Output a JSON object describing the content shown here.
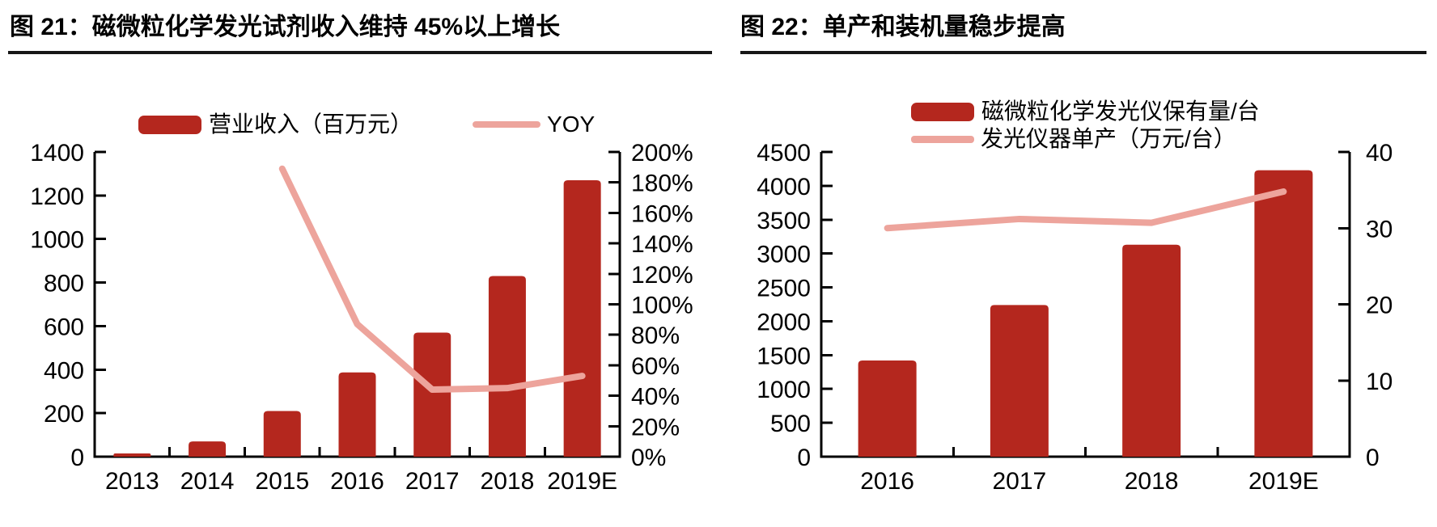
{
  "colors": {
    "bar": "#b4271e",
    "line": "#eda49c",
    "axis": "#000000",
    "text": "#000000",
    "divider": "#161616",
    "background": "#ffffff"
  },
  "chart_data": [
    {
      "type": "bar",
      "subtype": "combo-bar-line-dual-axis",
      "title": "图 21：磁微粒化学发光试剂收入维持 45%以上增长",
      "categories": [
        "2013",
        "2014",
        "2015",
        "2016",
        "2017",
        "2018",
        "2019E"
      ],
      "series": [
        {
          "name": "营业收入（百万元）",
          "type": "bar",
          "axis": "left",
          "values": [
            15,
            70,
            210,
            387,
            570,
            830,
            1270
          ]
        },
        {
          "name": "YOY",
          "type": "line",
          "axis": "right",
          "values": [
            null,
            null,
            189,
            87,
            44,
            45,
            53
          ]
        }
      ],
      "left_axis": {
        "min": 0,
        "max": 1400,
        "step": 200,
        "suffix": ""
      },
      "right_axis": {
        "min": 0,
        "max": 200,
        "step": 20,
        "suffix": "%"
      },
      "grid": false,
      "legend_position": "top"
    },
    {
      "type": "bar",
      "subtype": "combo-bar-line-dual-axis",
      "title": "图 22：单产和装机量稳步提高",
      "categories": [
        "2016",
        "2017",
        "2018",
        "2019E"
      ],
      "series": [
        {
          "name": "磁微粒化学发光仪保有量/台",
          "type": "bar",
          "axis": "left",
          "values": [
            1420,
            2240,
            3130,
            4230
          ]
        },
        {
          "name": "发光仪器单产（万元/台）",
          "type": "line",
          "axis": "right",
          "values": [
            30,
            31.2,
            30.7,
            34.8
          ]
        }
      ],
      "left_axis": {
        "min": 0,
        "max": 4500,
        "step": 500,
        "suffix": ""
      },
      "right_axis": {
        "min": 0,
        "max": 40,
        "step": 10,
        "suffix": ""
      },
      "grid": false,
      "legend_position": "top-right"
    }
  ]
}
